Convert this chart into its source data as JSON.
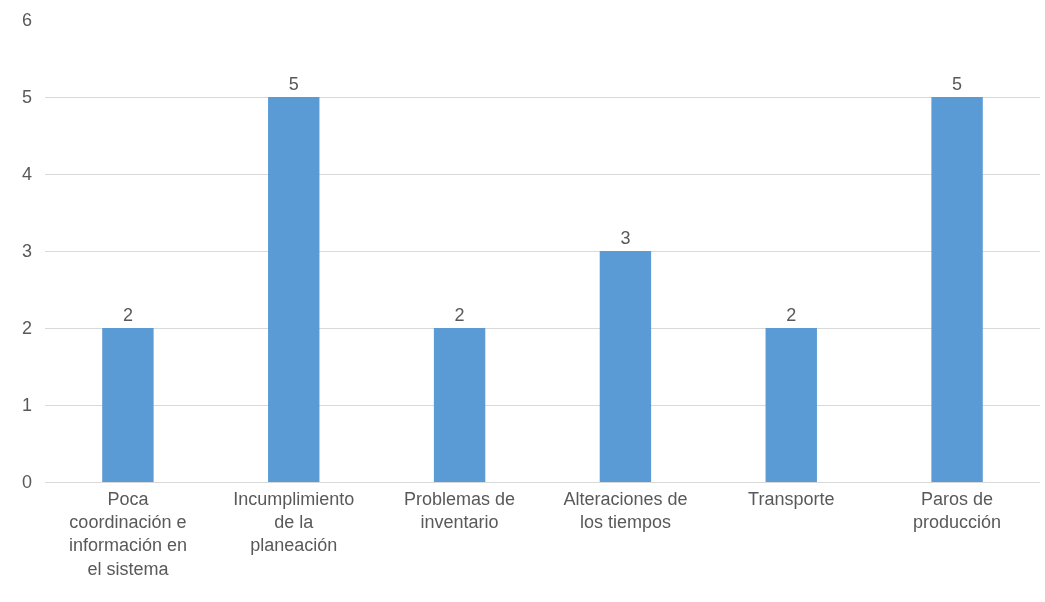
{
  "chart_data": {
    "type": "bar",
    "categories": [
      "Poca coordinación e información en el sistema",
      "Incumplimiento de la planeación",
      "Problemas de inventario",
      "Alteraciones de los tiempos",
      "Transporte",
      "Paros de producción"
    ],
    "values": [
      2,
      5,
      2,
      3,
      2,
      5
    ],
    "color": "#5b9bd5",
    "ylim": [
      0,
      6
    ],
    "yticks": [
      0,
      1,
      2,
      3,
      4,
      5,
      6
    ],
    "grid": "y",
    "data_labels": true
  }
}
